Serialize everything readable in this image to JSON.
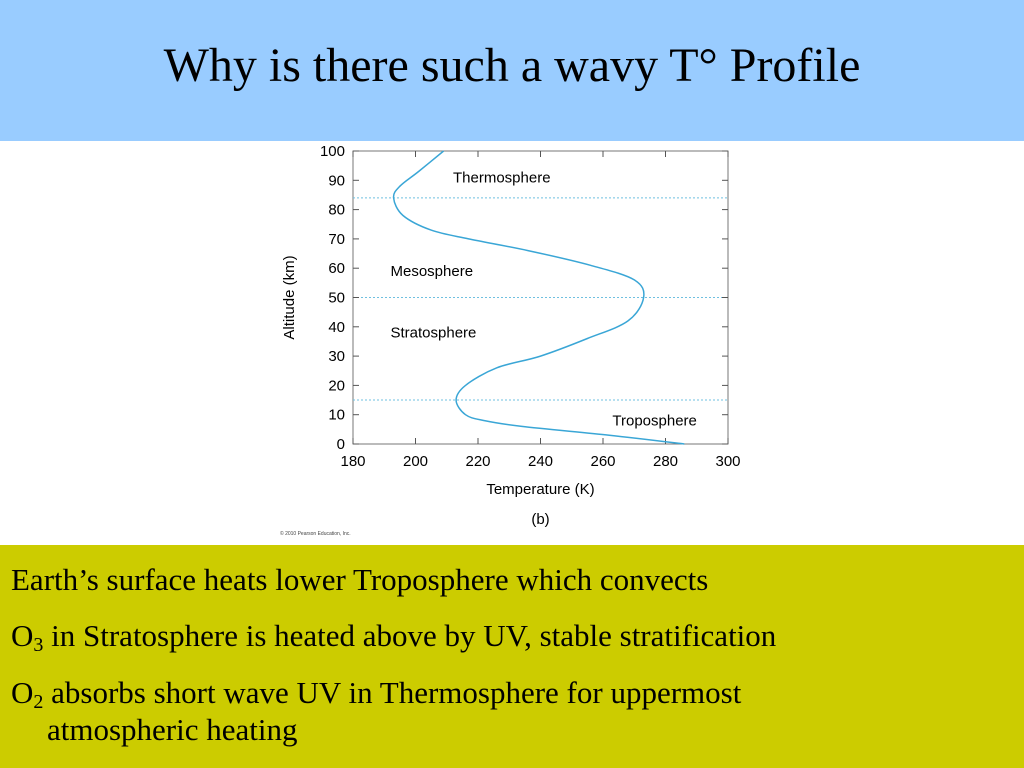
{
  "slide": {
    "title": "Why is there such a wavy T° Profile",
    "notes": [
      {
        "text": "Earth’s surface heats lower Troposphere which convects"
      },
      {
        "prefix": "O",
        "sub": "3",
        "text": " in Stratosphere is heated above by UV, stable stratification"
      },
      {
        "prefix": "O",
        "sub": "2",
        "text": " absorbs short wave UV in Thermosphere for uppermost",
        "continuation": "atmospheric heating"
      }
    ],
    "colors": {
      "header_bg": "#99ccff",
      "notes_bg": "#cccc00",
      "curve": "#3aa6d6",
      "boundary": "#6fc0e0"
    }
  },
  "chart_data": {
    "type": "line",
    "xlabel": "Temperature (K)",
    "ylabel": "Altitude (km)",
    "caption": "(b)",
    "copyright": "© 2010 Pearson Education, Inc.",
    "xlim": [
      180,
      300
    ],
    "ylim": [
      0,
      100
    ],
    "xticks": [
      180,
      200,
      220,
      240,
      260,
      280,
      300
    ],
    "yticks": [
      0,
      10,
      20,
      30,
      40,
      50,
      60,
      70,
      80,
      90,
      100
    ],
    "grid": false,
    "series": [
      {
        "x": [
          286,
          262,
          234,
          222,
          216,
          213,
          216,
          226,
          240,
          255,
          268,
          273,
          270,
          256,
          236,
          217,
          205,
          196,
          193,
          195,
          201,
          209
        ],
        "y": [
          0,
          3,
          6,
          8,
          10,
          15,
          20,
          26,
          30,
          36,
          42,
          50,
          56,
          61,
          66,
          70,
          73,
          78,
          84,
          88,
          93,
          100
        ]
      }
    ],
    "boundaries": [
      15,
      50,
      84
    ],
    "annotations": [
      {
        "text": "Thermosphere",
        "x": 212,
        "y": 91
      },
      {
        "text": "Mesosphere",
        "x": 192,
        "y": 59
      },
      {
        "text": "Stratosphere",
        "x": 192,
        "y": 38
      },
      {
        "text": "Troposphere",
        "x": 263,
        "y": 8
      }
    ]
  }
}
